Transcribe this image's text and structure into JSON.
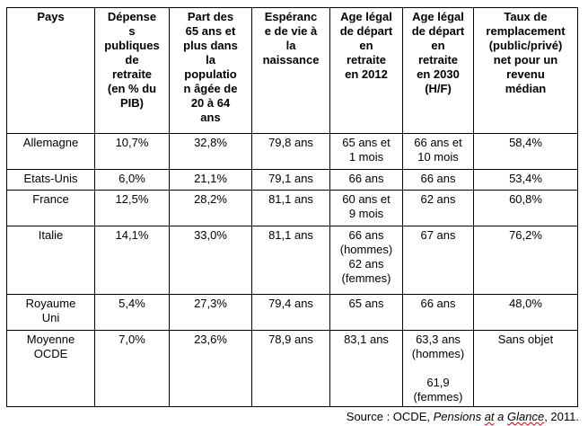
{
  "table": {
    "headers": [
      "Pays",
      "Dépense\ns\npubliques\nde\nretraite\n(en % du\nPIB)",
      "Part des\n65 ans et\nplus dans\nla\npopulatio\nn âgée de\n20 à 64\nans",
      "Espéranc\ne de vie à\nla\nnaissance",
      "Age légal\nde départ\nen\nretraite\nen 2012",
      "Age légal\nde départ\nen\nretraite\nen 2030\n(H/F)",
      "Taux de\nremplacement\n(public/privé)\nnet pour un\nrevenu\nmédian"
    ],
    "rows": [
      {
        "cells": [
          "Allemagne",
          "10,7%",
          "32,8%",
          "79,8 ans",
          "65 ans et\n1 mois",
          "66 ans et\n10 mois",
          "58,4%"
        ]
      },
      {
        "cells": [
          "Etats-Unis",
          "6,0%",
          "21,1%",
          "79,1 ans",
          "66 ans",
          "66 ans",
          "53,4%"
        ]
      },
      {
        "cells": [
          "France",
          "12,5%",
          "28,2%",
          "81,1 ans",
          "60 ans et\n9 mois",
          "62 ans",
          "60,8%"
        ]
      },
      {
        "cells": [
          "Italie",
          "14,1%",
          "33,0%",
          "81,1 ans",
          "66 ans\n(hommes)\n62 ans\n(femmes)",
          "67 ans",
          "76,2%"
        ]
      },
      {
        "cells": [
          "Royaume\nUni",
          "5,4%",
          "27,3%",
          "79,4 ans",
          "65 ans",
          "66 ans",
          "48,0%"
        ]
      },
      {
        "cells": [
          "Moyenne\nOCDE",
          "7,0%",
          "23,6%",
          "78,9 ans",
          "83,1 ans",
          "63,3 ans\n(hommes)\n\n61,9\n(femmes)",
          "Sans objet"
        ]
      }
    ]
  },
  "footer": {
    "prefix": "Source : OCDE, ",
    "title_part1": "Pensions ",
    "title_misspell1": "at",
    "title_part2": " a ",
    "title_misspell2": "Glance",
    "suffix": ", 2011."
  },
  "colors": {
    "border": "#000000",
    "text": "#000000",
    "spellcheck_underline": "#cc0000",
    "background": "#ffffff"
  }
}
